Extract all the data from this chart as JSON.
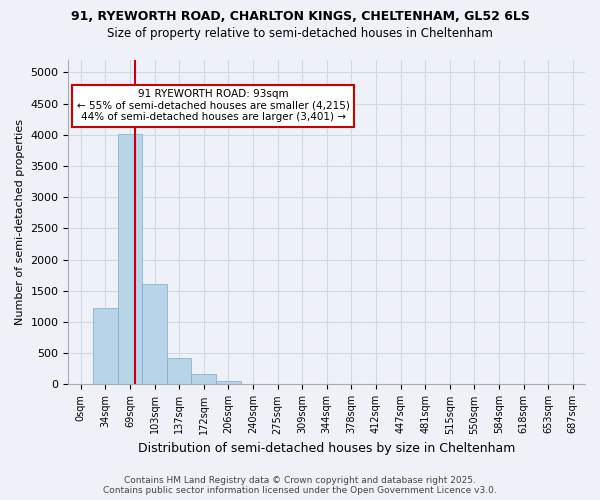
{
  "title_line1": "91, RYEWORTH ROAD, CHARLTON KINGS, CHELTENHAM, GL52 6LS",
  "title_line2": "Size of property relative to semi-detached houses in Cheltenham",
  "xlabel": "Distribution of semi-detached houses by size in Cheltenham",
  "ylabel": "Number of semi-detached properties",
  "bin_labels": [
    "0sqm",
    "34sqm",
    "69sqm",
    "103sqm",
    "137sqm",
    "172sqm",
    "206sqm",
    "240sqm",
    "275sqm",
    "309sqm",
    "344sqm",
    "378sqm",
    "412sqm",
    "447sqm",
    "481sqm",
    "515sqm",
    "550sqm",
    "584sqm",
    "618sqm",
    "653sqm",
    "687sqm"
  ],
  "bar_values": [
    0,
    1220,
    4020,
    1610,
    430,
    170,
    60,
    10,
    0,
    0,
    0,
    0,
    0,
    0,
    0,
    0,
    0,
    0,
    0,
    0,
    0
  ],
  "bar_color": "#b8d4e8",
  "bar_edge_color": "#7aaec8",
  "vline_color": "#cc0000",
  "annotation_text_line1": "91 RYEWORTH ROAD: 93sqm",
  "annotation_text_line2": "← 55% of semi-detached houses are smaller (4,215)",
  "annotation_text_line3": "44% of semi-detached houses are larger (3,401) →",
  "annotation_edge_color": "#cc0000",
  "ylim": [
    0,
    5200
  ],
  "yticks": [
    0,
    500,
    1000,
    1500,
    2000,
    2500,
    3000,
    3500,
    4000,
    4500,
    5000
  ],
  "grid_color": "#d0d8e8",
  "background_color": "#eef2f8",
  "footer_line1": "Contains HM Land Registry data © Crown copyright and database right 2025.",
  "footer_line2": "Contains public sector information licensed under the Open Government Licence v3.0."
}
